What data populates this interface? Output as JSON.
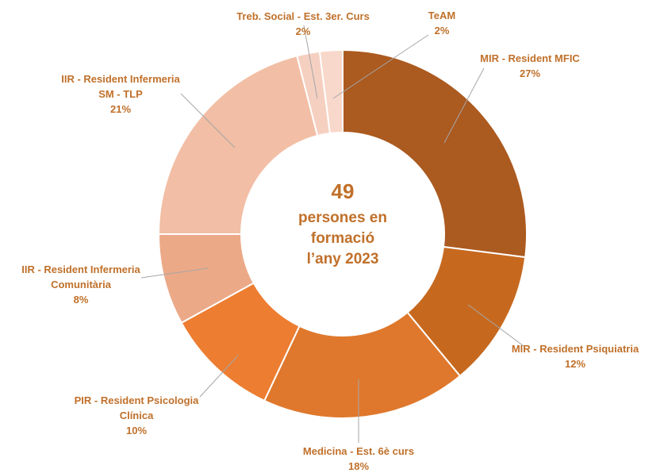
{
  "center": {
    "count": "49",
    "line1": "persones en",
    "line2": "formació",
    "line3": "l’any 2023"
  },
  "chart_data": {
    "type": "pie",
    "variant": "donut",
    "total": 49,
    "title": "",
    "slices": [
      {
        "label_lines": [
          "MIR - Resident MFIC"
        ],
        "value": 27,
        "pct_label": "27%",
        "color": "#ab5a20"
      },
      {
        "label_lines": [
          "MIR - Resident Psiquiatria"
        ],
        "value": 12,
        "pct_label": "12%",
        "color": "#c6691f"
      },
      {
        "label_lines": [
          "Medicina - Est. 6è curs"
        ],
        "value": 18,
        "pct_label": "18%",
        "color": "#df782c"
      },
      {
        "label_lines": [
          "PIR - Resident Psicologia",
          "Clínica"
        ],
        "value": 10,
        "pct_label": "10%",
        "color": "#ed7d31"
      },
      {
        "label_lines": [
          "IIR - Resident Infermeria",
          "Comunitària"
        ],
        "value": 8,
        "pct_label": "8%",
        "color": "#eca988"
      },
      {
        "label_lines": [
          "IIR - Resident Infermeria",
          "SM - TLP"
        ],
        "value": 21,
        "pct_label": "21%",
        "color": "#f2bea5"
      },
      {
        "label_lines": [
          "Treb. Social - Est. 3er. Curs"
        ],
        "value": 2,
        "pct_label": "2%",
        "color": "#f5d0c1"
      },
      {
        "label_lines": [
          "TeAM"
        ],
        "value": 2,
        "pct_label": "2%",
        "color": "#f8d8ca"
      }
    ],
    "legend": "none",
    "label_placement": "outside with leader lines"
  }
}
